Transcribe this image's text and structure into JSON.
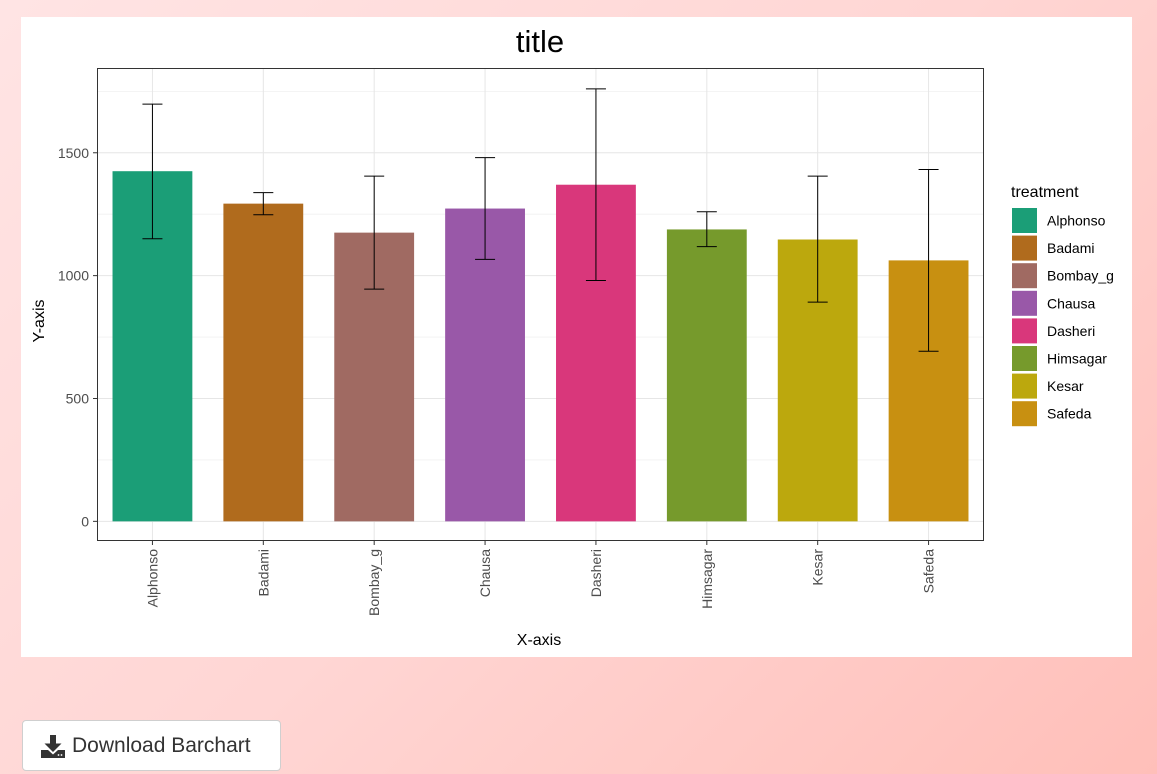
{
  "chart_data": {
    "type": "bar",
    "title": "title",
    "xlabel": "X-axis",
    "ylabel": "Y-axis",
    "categories": [
      "Alphonso",
      "Badami",
      "Bombay_g",
      "Chausa",
      "Dasheri",
      "Himsagar",
      "Kesar",
      "Safeda"
    ],
    "values": [
      1425,
      1293,
      1175,
      1273,
      1370,
      1188,
      1147,
      1062
    ],
    "error_low": [
      1150,
      1248,
      945,
      1066,
      980,
      1118,
      892,
      692
    ],
    "error_high": [
      1698,
      1338,
      1405,
      1480,
      1760,
      1260,
      1405,
      1432
    ],
    "colors": [
      "#1b9e77",
      "#b06b1d",
      "#a06a62",
      "#9958a8",
      "#d9377b",
      "#769a2c",
      "#bca80d",
      "#c89011"
    ],
    "ylim": [
      -80,
      1845
    ],
    "yticks": [
      0,
      500,
      1000,
      1500
    ],
    "grid": true,
    "legend": {
      "title": "treatment",
      "position": "right"
    }
  },
  "download": {
    "label": "Download Barchart",
    "icon": "download-icon"
  }
}
